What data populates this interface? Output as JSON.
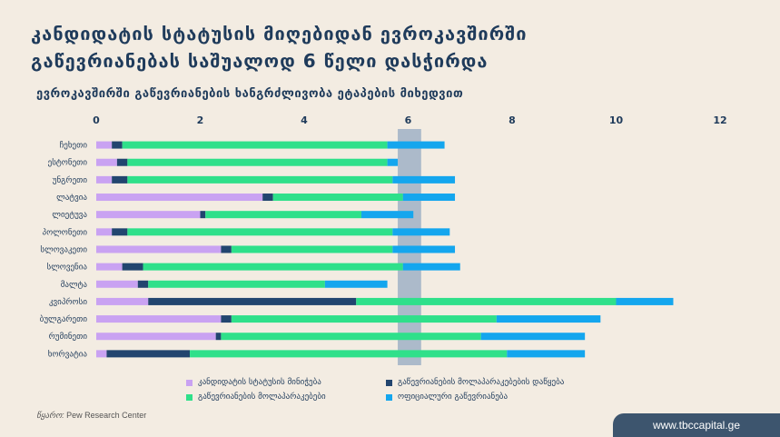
{
  "title": "კანდიდატის სტატუსის მიღებიდან ევროკავშირში გაწევრიანებას საშუალოდ 6 წელი დასჭირდა",
  "subtitle": "ევროკავშირში გაწევრიანების ხანგრძლივობა ეტაპების მიხედვით",
  "source_label": "წყარო:",
  "source_name": "Pew Research Center",
  "website": "www.tbccapital.ge",
  "colors": {
    "background": "#f3ece2",
    "candidate": "#c9a2f2",
    "opening": "#22456f",
    "negotiations": "#2fe08a",
    "official": "#14a6ee",
    "average_band": "#9fb2c6",
    "text": "#1f3b5b"
  },
  "chart_data": {
    "type": "bar",
    "orientation": "horizontal",
    "stacked": true,
    "xlim": [
      0,
      12
    ],
    "xticks": [
      "0",
      "2",
      "4",
      "6",
      "8",
      "10",
      "12"
    ],
    "average_band": [
      5.8,
      6.25
    ],
    "categories": [
      "ჩეხეთი",
      "ესტონეთი",
      "უნგრეთი",
      "ლატვია",
      "ლიეტუვა",
      "პოლონეთი",
      "სლოვაკეთი",
      "სლოვენია",
      "მალტა",
      "კვიპროსი",
      "ბულგარეთი",
      "რუმინეთი",
      "ხორვატია"
    ],
    "series": [
      {
        "name": "კანდიდატის სტატუსის მინიჭება",
        "color": "#c9a2f2",
        "values": [
          0.3,
          0.4,
          0.3,
          3.2,
          2.0,
          0.3,
          2.4,
          0.5,
          0.8,
          1.0,
          2.4,
          2.3,
          0.2
        ]
      },
      {
        "name": "გაწევრიანების მოლაპარაკებების დაწყება",
        "color": "#22456f",
        "values": [
          0.2,
          0.2,
          0.3,
          0.2,
          0.1,
          0.3,
          0.2,
          0.4,
          0.2,
          4.0,
          0.2,
          0.1,
          1.6
        ]
      },
      {
        "name": "გაწევრიანების მოლაპარაკებები",
        "color": "#2fe08a",
        "values": [
          5.1,
          5.0,
          5.1,
          2.5,
          3.0,
          5.1,
          3.1,
          5.0,
          3.4,
          5.0,
          5.1,
          5.0,
          6.1
        ]
      },
      {
        "name": "ოფიციალური გაწევრიანება",
        "color": "#14a6ee",
        "values": [
          1.1,
          0.2,
          1.2,
          1.0,
          1.0,
          1.1,
          1.2,
          1.1,
          1.2,
          1.1,
          2.0,
          2.0,
          1.5
        ]
      }
    ]
  }
}
